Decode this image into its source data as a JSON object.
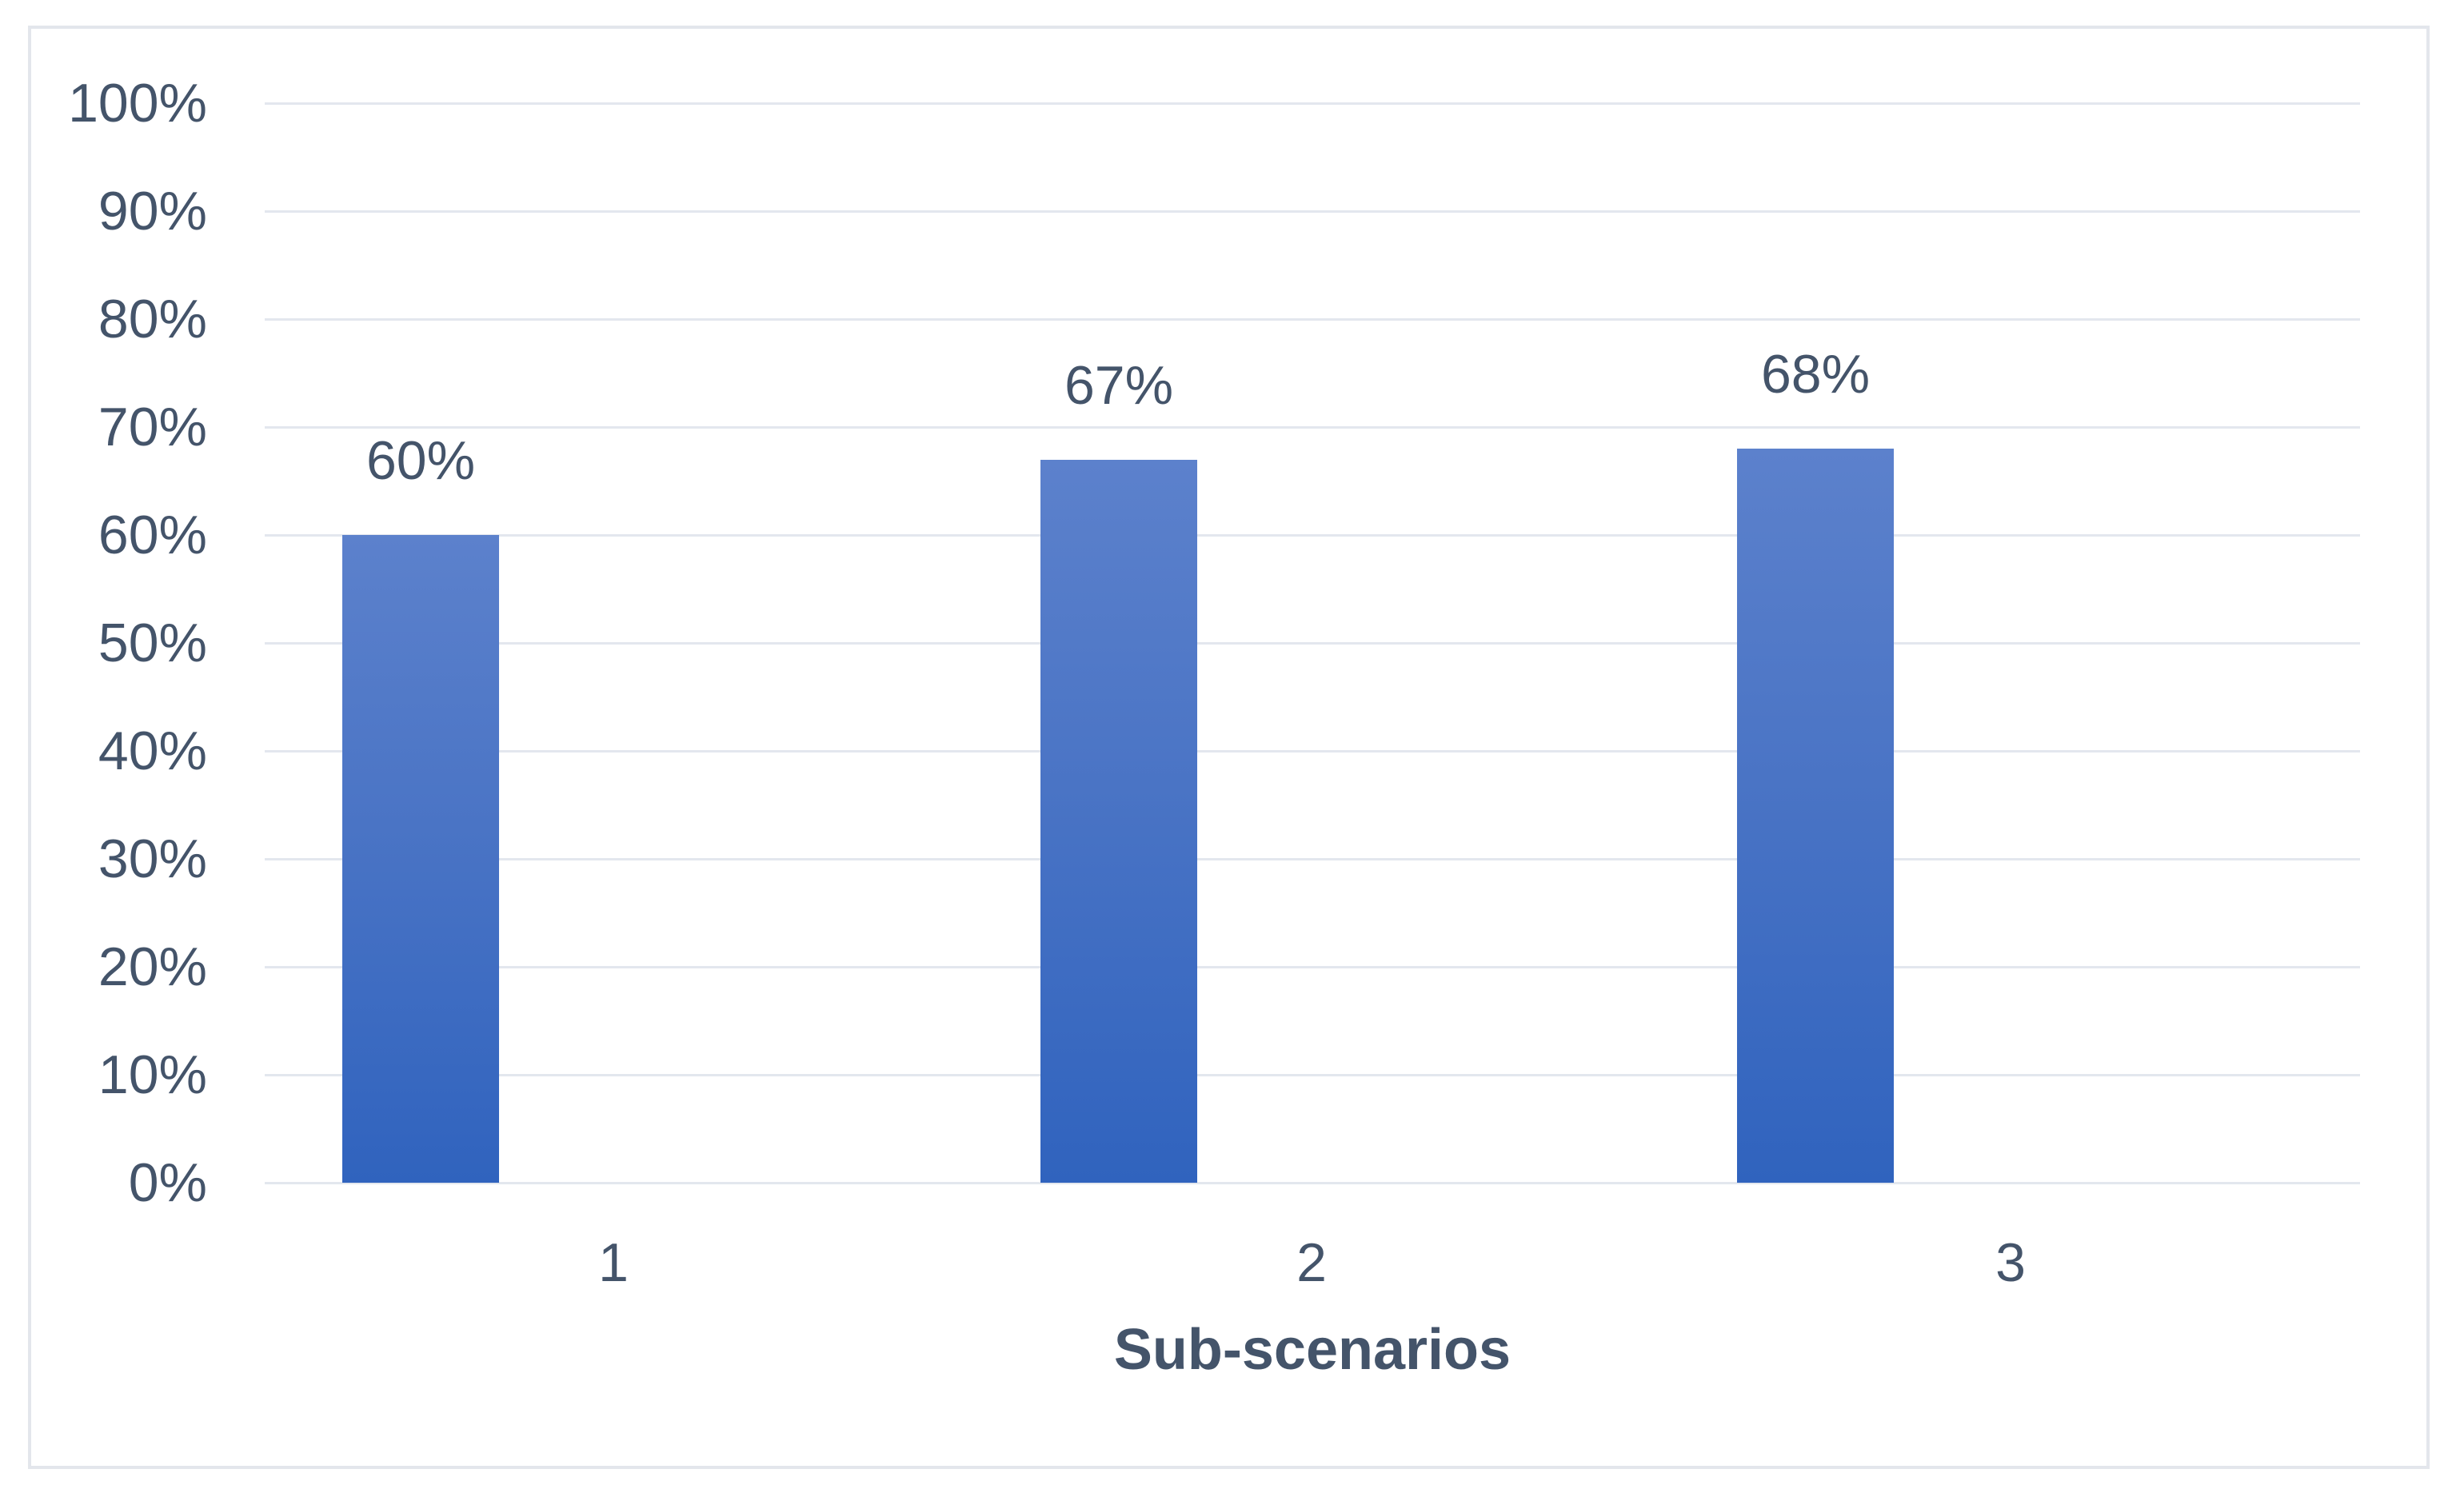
{
  "chart_data": {
    "type": "bar",
    "title": "",
    "categories": [
      "1",
      "2",
      "3"
    ],
    "values": [
      60,
      67,
      68
    ],
    "data_labels": [
      "60%",
      "67%",
      "68%"
    ],
    "xlabel": "Sub-scenarios",
    "ylabel": "",
    "ylim": [
      0,
      100
    ],
    "ytick_step": 10,
    "ytick_labels": [
      "0%",
      "10%",
      "20%",
      "30%",
      "40%",
      "50%",
      "60%",
      "70%",
      "80%",
      "90%",
      "100%"
    ],
    "grid": "horizontal",
    "legend": "none",
    "colors": {
      "bar_gradient_top": "#5c81cc",
      "bar_gradient_bottom": "#3063be",
      "axis_text": "#44546a",
      "gridline": "#e3e7ee",
      "frame_border": "#e3e6ec",
      "background": "#ffffff"
    }
  }
}
